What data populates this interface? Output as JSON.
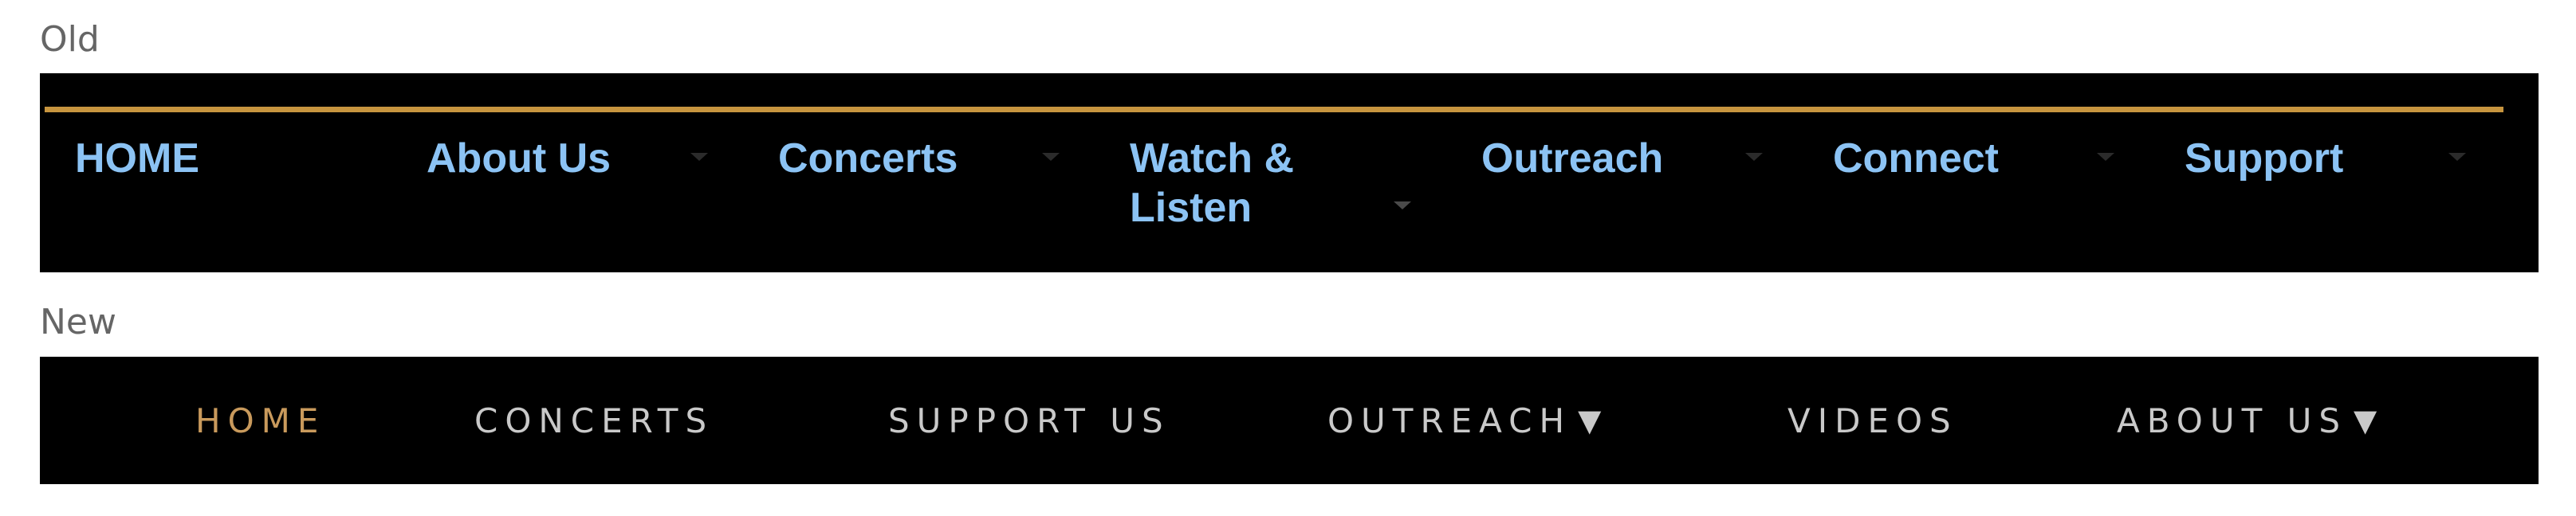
{
  "labels": {
    "old": "Old",
    "new": "New"
  },
  "colors": {
    "nav_background": "#000000",
    "old_rule": "#c7953f",
    "old_link": "#8cc3f4",
    "new_link": "#c9c9c9",
    "new_active": "#c99a5c"
  },
  "old_nav": {
    "items": [
      {
        "label": "HOME",
        "has_dropdown": false
      },
      {
        "label": "About Us",
        "has_dropdown": true
      },
      {
        "label": "Concerts",
        "has_dropdown": true
      },
      {
        "label": "Watch & Listen",
        "has_dropdown": true
      },
      {
        "label": "Outreach",
        "has_dropdown": true
      },
      {
        "label": "Connect",
        "has_dropdown": true
      },
      {
        "label": "Support",
        "has_dropdown": true
      }
    ]
  },
  "new_nav": {
    "caret": "▼",
    "items": [
      {
        "label": "HOME",
        "active": true,
        "has_dropdown": false
      },
      {
        "label": "CONCERTS",
        "active": false,
        "has_dropdown": false
      },
      {
        "label": "SUPPORT US",
        "active": false,
        "has_dropdown": false
      },
      {
        "label": "OUTREACH",
        "active": false,
        "has_dropdown": true
      },
      {
        "label": "VIDEOS",
        "active": false,
        "has_dropdown": false
      },
      {
        "label": "ABOUT US",
        "active": false,
        "has_dropdown": true
      }
    ]
  }
}
